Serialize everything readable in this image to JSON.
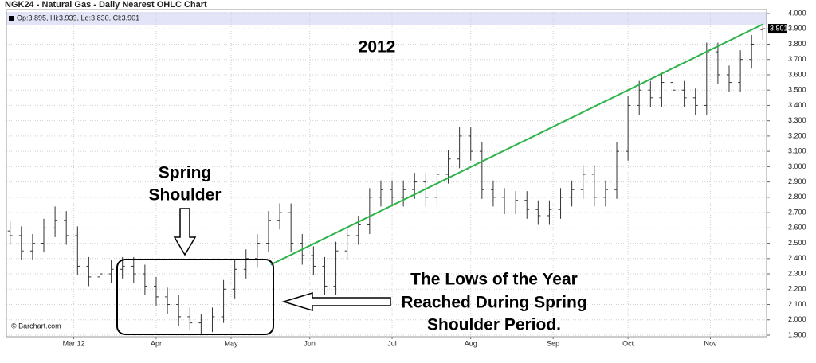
{
  "chart_data": {
    "type": "ohlc",
    "title": "NGK24 - Natural Gas - Daily Nearest OHLC Chart",
    "legend_text": "Op:3.895, Hi:3.933, Lo:3.830, Cl:3.901",
    "last_price_label": "3.901",
    "source": "© Barchart.com",
    "color": "#333333",
    "grid": true,
    "x": [
      1,
      4,
      7,
      10,
      13,
      16,
      19,
      22,
      25,
      28,
      31,
      34,
      37,
      40,
      43,
      46,
      49,
      52,
      55,
      58,
      61,
      64,
      67,
      70,
      73,
      76,
      79,
      82,
      85,
      88,
      91,
      94,
      97,
      100,
      103,
      106,
      109,
      112,
      115,
      118,
      121,
      124,
      127,
      130,
      133,
      136,
      139,
      142,
      145,
      148,
      151,
      154,
      157,
      160,
      163,
      166,
      169,
      172,
      175,
      178,
      181,
      184,
      187,
      190,
      193,
      196,
      199,
      202
    ],
    "open": [
      2.58,
      2.55,
      2.45,
      2.5,
      2.6,
      2.65,
      2.55,
      2.35,
      2.28,
      2.3,
      2.33,
      2.35,
      2.3,
      2.22,
      2.15,
      2.1,
      2.02,
      1.98,
      1.96,
      2.02,
      2.2,
      2.33,
      2.4,
      2.5,
      2.65,
      2.7,
      2.5,
      2.42,
      2.35,
      2.22,
      2.45,
      2.55,
      2.62,
      2.8,
      2.85,
      2.8,
      2.85,
      2.9,
      2.8,
      2.95,
      3.05,
      3.2,
      3.1,
      2.85,
      2.8,
      2.75,
      2.78,
      2.72,
      2.68,
      2.72,
      2.8,
      2.85,
      2.95,
      2.8,
      2.85,
      3.1,
      3.4,
      3.5,
      3.45,
      3.55,
      3.5,
      3.45,
      3.4,
      3.75,
      3.6,
      3.55,
      3.7,
      3.895
    ],
    "high": [
      2.64,
      2.61,
      2.56,
      2.66,
      2.74,
      2.71,
      2.61,
      2.41,
      2.36,
      2.39,
      2.41,
      2.41,
      2.36,
      2.28,
      2.21,
      2.16,
      2.08,
      2.04,
      2.08,
      2.26,
      2.39,
      2.46,
      2.56,
      2.71,
      2.76,
      2.76,
      2.56,
      2.48,
      2.41,
      2.51,
      2.61,
      2.68,
      2.86,
      2.91,
      2.91,
      2.91,
      2.96,
      2.96,
      3.01,
      3.11,
      3.26,
      3.26,
      3.16,
      2.91,
      2.86,
      2.84,
      2.84,
      2.78,
      2.78,
      2.86,
      2.91,
      3.01,
      3.01,
      2.91,
      3.16,
      3.46,
      3.56,
      3.56,
      3.61,
      3.61,
      3.56,
      3.51,
      3.81,
      3.81,
      3.66,
      3.76,
      3.86,
      3.933
    ],
    "low": [
      2.49,
      2.39,
      2.39,
      2.44,
      2.54,
      2.49,
      2.29,
      2.22,
      2.22,
      2.24,
      2.27,
      2.24,
      2.16,
      2.09,
      2.04,
      1.96,
      1.93,
      1.91,
      1.92,
      1.98,
      2.14,
      2.27,
      2.34,
      2.44,
      2.59,
      2.44,
      2.36,
      2.29,
      2.16,
      2.16,
      2.39,
      2.49,
      2.56,
      2.74,
      2.74,
      2.74,
      2.79,
      2.74,
      2.74,
      2.89,
      2.99,
      3.04,
      2.79,
      2.74,
      2.69,
      2.69,
      2.66,
      2.62,
      2.62,
      2.66,
      2.74,
      2.79,
      2.74,
      2.74,
      2.79,
      3.04,
      3.34,
      3.39,
      3.39,
      3.44,
      3.39,
      3.34,
      3.34,
      3.54,
      3.49,
      3.49,
      3.64,
      3.83
    ],
    "close": [
      2.55,
      2.45,
      2.5,
      2.6,
      2.65,
      2.55,
      2.35,
      2.28,
      2.3,
      2.33,
      2.35,
      2.3,
      2.22,
      2.15,
      2.1,
      2.02,
      1.98,
      1.96,
      2.02,
      2.2,
      2.33,
      2.4,
      2.5,
      2.65,
      2.7,
      2.5,
      2.42,
      2.35,
      2.22,
      2.45,
      2.55,
      2.62,
      2.8,
      2.85,
      2.8,
      2.85,
      2.9,
      2.8,
      2.95,
      3.05,
      3.2,
      3.1,
      2.85,
      2.8,
      2.75,
      2.78,
      2.72,
      2.68,
      2.72,
      2.8,
      2.85,
      2.95,
      2.8,
      2.85,
      3.1,
      3.4,
      3.5,
      3.45,
      3.55,
      3.5,
      3.45,
      3.4,
      3.75,
      3.6,
      3.55,
      3.7,
      3.8,
      3.901
    ],
    "trendline": {
      "x": [
        70.6,
        202
      ],
      "values": [
        2.36,
        3.93
      ],
      "color": "#2db34a"
    },
    "xlim": [
      0,
      203
    ],
    "xticks": [
      {
        "value": 18,
        "label": "Mar 12"
      },
      {
        "value": 40,
        "label": "Apr"
      },
      {
        "value": 60,
        "label": "May"
      },
      {
        "value": 81,
        "label": "Jun"
      },
      {
        "value": 103,
        "label": "Jul"
      },
      {
        "value": 124,
        "label": "Aug"
      },
      {
        "value": 146,
        "label": "Sep"
      },
      {
        "value": 166,
        "label": "Oct"
      },
      {
        "value": 188,
        "label": "Nov"
      }
    ],
    "ylim": [
      1.9,
      4.0
    ],
    "yticks": [
      {
        "value": 1.9,
        "label": "1.900"
      },
      {
        "value": 2.0,
        "label": "2.000"
      },
      {
        "value": 2.1,
        "label": "2.100"
      },
      {
        "value": 2.2,
        "label": "2.200"
      },
      {
        "value": 2.3,
        "label": "2.300"
      },
      {
        "value": 2.4,
        "label": "2.400"
      },
      {
        "value": 2.5,
        "label": "2.500"
      },
      {
        "value": 2.6,
        "label": "2.600"
      },
      {
        "value": 2.7,
        "label": "2.700"
      },
      {
        "value": 2.8,
        "label": "2.800"
      },
      {
        "value": 2.9,
        "label": "2.900"
      },
      {
        "value": 3.0,
        "label": "3.000"
      },
      {
        "value": 3.1,
        "label": "3.100"
      },
      {
        "value": 3.2,
        "label": "3.200"
      },
      {
        "value": 3.3,
        "label": "3.300"
      },
      {
        "value": 3.4,
        "label": "3.400"
      },
      {
        "value": 3.5,
        "label": "3.500"
      },
      {
        "value": 3.6,
        "label": "3.600"
      },
      {
        "value": 3.7,
        "label": "3.700"
      },
      {
        "value": 3.8,
        "label": "3.800"
      },
      {
        "value": 3.9,
        "label": "3.900"
      },
      {
        "value": 4.0,
        "label": "4.000"
      }
    ],
    "annotations": {
      "year": "2012",
      "spring_shoulder": [
        "Spring",
        "Shoulder"
      ],
      "lows_note": [
        "The Lows of the Year",
        "Reached During Spring",
        "Shoulder Period."
      ]
    }
  }
}
